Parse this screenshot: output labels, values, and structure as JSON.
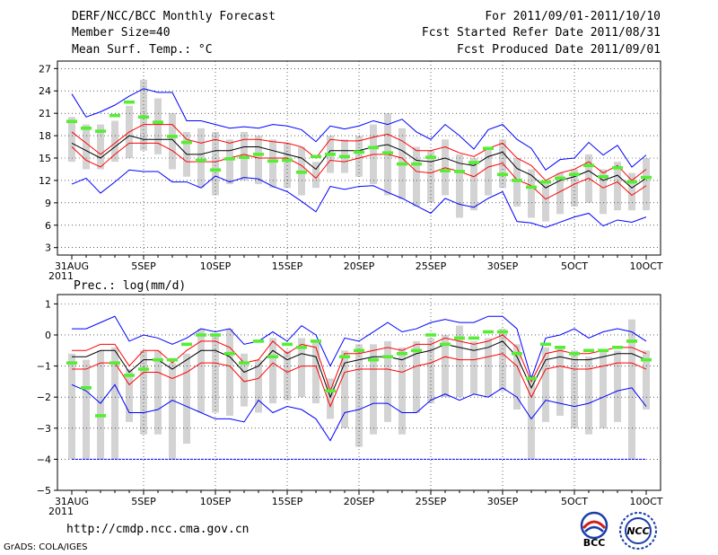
{
  "header": {
    "title": "DERF/NCC/BCC Monthly Forecast",
    "member_size": "Member Size=40",
    "variable": "Mean Surf. Temp.: °C",
    "period": "For 2011/09/01-2011/10/10",
    "started": "Fcst Started Refer Date 2011/08/31",
    "produced": "Fcst Produced Date 2011/09/01"
  },
  "footer": {
    "url": "http://cmdp.ncc.cma.gov.cn",
    "grads": "GrADS: COLA/IGES",
    "logo_left": "BCC",
    "logo_right": "NCC"
  },
  "colors": {
    "box": "#d3d3d3",
    "median": "#000000",
    "ens_envelope": "#ff0000",
    "extreme": "#0000ff",
    "observed": "#55ee33"
  },
  "chart_data": [
    {
      "type": "line",
      "title": "Mean Surf. Temp.: °C",
      "xlabel": "",
      "ylabel": "°C",
      "ylim": [
        2,
        28
      ],
      "yticks": [
        "3",
        "6",
        "9",
        "12",
        "15",
        "18",
        "21",
        "24",
        "27"
      ],
      "ytick_values": [
        3,
        6,
        9,
        12,
        15,
        18,
        21,
        24,
        27
      ],
      "xtick_labels": [
        "31AUG",
        "5SEP",
        "10SEP",
        "15SEP",
        "20SEP",
        "25SEP",
        "30SEP",
        "5OCT",
        "10OCT"
      ],
      "x_year_label": "2011",
      "x_days": 41,
      "series": [
        {
          "name": "max",
          "values": [
            23.6,
            20.5,
            21.2,
            22.1,
            23.3,
            24.3,
            23.8,
            23.8,
            20.0,
            20.0,
            19.5,
            19.0,
            19.2,
            19.0,
            19.5,
            19.3,
            18.8,
            17.2,
            19.3,
            18.9,
            19.3,
            20.0,
            19.5,
            20.2,
            18.5,
            17.5,
            19.5,
            18.0,
            16.2,
            18.8,
            19.5,
            17.5,
            16.3,
            13.4,
            14.8,
            15.0,
            17.1,
            15.4,
            16.7,
            13.8,
            15.4
          ]
        },
        {
          "name": "upper",
          "values": [
            18.5,
            17.0,
            15.5,
            17.0,
            18.5,
            19.5,
            19.5,
            19.5,
            17.5,
            17.0,
            17.5,
            17.0,
            17.5,
            17.5,
            17.2,
            17.0,
            16.5,
            15.0,
            17.5,
            17.3,
            17.3,
            17.8,
            18.2,
            17.3,
            16.0,
            16.0,
            16.5,
            15.7,
            15.2,
            16.3,
            17.0,
            15.0,
            14.0,
            12.0,
            13.0,
            13.5,
            14.5,
            13.0,
            14.0,
            12.0,
            13.5
          ]
        },
        {
          "name": "median",
          "values": [
            17.0,
            16.0,
            15.0,
            16.5,
            18.0,
            17.5,
            17.5,
            17.5,
            15.5,
            15.5,
            16.0,
            16.0,
            16.5,
            16.5,
            16.0,
            15.5,
            15.0,
            13.5,
            16.0,
            16.0,
            16.0,
            16.5,
            16.8,
            16.0,
            14.7,
            14.5,
            15.0,
            14.3,
            14.0,
            15.2,
            15.8,
            13.6,
            12.7,
            11.0,
            12.0,
            12.5,
            13.3,
            12.0,
            12.7,
            11.0,
            12.3
          ]
        },
        {
          "name": "lower",
          "values": [
            16.5,
            14.7,
            13.8,
            15.5,
            17.0,
            17.0,
            17.0,
            16.0,
            14.5,
            14.5,
            14.5,
            15.0,
            15.5,
            15.0,
            15.0,
            15.0,
            14.0,
            12.3,
            14.7,
            14.5,
            15.0,
            15.5,
            15.5,
            15.0,
            13.2,
            13.0,
            13.7,
            13.2,
            12.5,
            13.8,
            14.3,
            12.1,
            11.3,
            9.5,
            10.5,
            11.5,
            12.3,
            11.0,
            11.8,
            10.0,
            11.3
          ]
        },
        {
          "name": "min",
          "values": [
            11.5,
            12.3,
            10.3,
            11.8,
            13.4,
            13.2,
            13.2,
            11.8,
            11.8,
            11.0,
            12.6,
            11.8,
            12.4,
            12.2,
            11.2,
            10.5,
            9.2,
            7.8,
            11.2,
            10.8,
            11.2,
            11.3,
            10.4,
            9.6,
            8.6,
            7.6,
            9.6,
            8.8,
            8.4,
            9.6,
            10.5,
            6.5,
            6.3,
            5.7,
            6.4,
            7.1,
            7.6,
            5.9,
            6.7,
            6.4,
            7.1
          ]
        },
        {
          "name": "box_top",
          "values": [
            20.5,
            19.5,
            19.5,
            20.0,
            22.0,
            25.5,
            23.0,
            21.0,
            18.5,
            19.0,
            18.5,
            17.5,
            18.5,
            18.0,
            17.5,
            17.0,
            16.5,
            14.5,
            18.0,
            17.5,
            18.0,
            19.5,
            21.0,
            19.0,
            16.5,
            16.0,
            17.5,
            15.5,
            15.0,
            16.5,
            17.5,
            15.0,
            13.5,
            12.0,
            13.0,
            13.5,
            15.5,
            13.5,
            14.5,
            13.0,
            15.0
          ]
        },
        {
          "name": "box_bottom",
          "values": [
            14.5,
            13.5,
            13.5,
            14.5,
            15.0,
            16.0,
            15.5,
            13.5,
            12.5,
            11.0,
            10.0,
            11.5,
            12.0,
            11.5,
            11.0,
            11.0,
            10.0,
            11.0,
            13.0,
            13.0,
            12.5,
            11.5,
            10.0,
            9.5,
            8.5,
            9.0,
            10.0,
            7.0,
            8.0,
            10.0,
            11.0,
            8.5,
            7.0,
            6.5,
            7.5,
            8.5,
            9.0,
            7.5,
            8.0,
            8.0,
            8.0
          ]
        },
        {
          "name": "observed",
          "values": [
            19.9,
            19.0,
            18.6,
            20.7,
            22.5,
            20.5,
            19.8,
            17.9,
            17.1,
            14.7,
            13.4,
            14.9,
            15.1,
            15.5,
            14.6,
            14.7,
            13.1,
            15.2,
            15.5,
            15.2,
            15.8,
            16.4,
            15.7,
            14.2,
            14.2,
            15.1,
            13.3,
            13.2,
            14.4,
            16.3,
            12.8,
            12.0,
            11.1,
            11.8,
            12.3,
            12.8,
            14.0,
            12.5,
            13.7,
            11.8,
            12.4
          ]
        }
      ]
    },
    {
      "type": "line",
      "title": "Prec.: log(mm/d)",
      "xlabel": "",
      "ylabel": "log(mm/d)",
      "ylim": [
        -5,
        1.3
      ],
      "yticks": [
        "−5",
        "−4",
        "−3",
        "−2",
        "−1",
        "0",
        "1"
      ],
      "ytick_values": [
        -5,
        -4,
        -3,
        -2,
        -1,
        0,
        1
      ],
      "xtick_labels": [
        "31AUG",
        "5SEP",
        "10SEP",
        "15SEP",
        "20SEP",
        "25SEP",
        "30SEP",
        "5OCT",
        "10OCT"
      ],
      "x_year_label": "2011",
      "x_days": 41,
      "series": [
        {
          "name": "max",
          "values": [
            0.2,
            0.2,
            0.4,
            0.6,
            -0.2,
            0.0,
            -0.1,
            -0.3,
            -0.1,
            0.2,
            0.1,
            0.2,
            -0.3,
            -0.2,
            0.1,
            -0.2,
            0.3,
            0.0,
            -1.0,
            -0.1,
            -0.2,
            0.1,
            0.4,
            0.1,
            0.2,
            0.4,
            0.5,
            0.4,
            0.4,
            0.6,
            0.6,
            0.2,
            -1.4,
            -0.1,
            0.0,
            0.2,
            -0.1,
            0.1,
            0.2,
            0.1,
            -0.2
          ]
        },
        {
          "name": "upper",
          "values": [
            -0.5,
            -0.5,
            -0.3,
            -0.3,
            -1.0,
            -0.5,
            -0.5,
            -0.9,
            -0.5,
            -0.2,
            -0.2,
            -0.4,
            -0.9,
            -0.8,
            -0.2,
            -0.6,
            -0.3,
            -0.4,
            -1.8,
            -0.6,
            -0.6,
            -0.5,
            -0.4,
            -0.5,
            -0.3,
            -0.3,
            -0.1,
            -0.2,
            -0.3,
            -0.2,
            0.0,
            -0.4,
            -1.5,
            -0.6,
            -0.5,
            -0.6,
            -0.6,
            -0.5,
            -0.4,
            -0.4,
            -0.6
          ]
        },
        {
          "name": "median",
          "values": [
            -0.7,
            -0.7,
            -0.5,
            -0.5,
            -1.2,
            -0.8,
            -0.8,
            -1.1,
            -0.8,
            -0.5,
            -0.5,
            -0.7,
            -1.2,
            -1.0,
            -0.5,
            -0.8,
            -0.6,
            -0.7,
            -2.0,
            -0.9,
            -0.8,
            -0.7,
            -0.7,
            -0.8,
            -0.6,
            -0.5,
            -0.3,
            -0.4,
            -0.5,
            -0.4,
            -0.2,
            -0.7,
            -1.7,
            -0.8,
            -0.7,
            -0.8,
            -0.8,
            -0.7,
            -0.6,
            -0.6,
            -0.8
          ]
        },
        {
          "name": "lower",
          "values": [
            -1.1,
            -1.1,
            -0.9,
            -0.9,
            -1.6,
            -1.2,
            -1.2,
            -1.4,
            -1.2,
            -0.9,
            -0.9,
            -1.0,
            -1.5,
            -1.4,
            -0.9,
            -1.2,
            -1.0,
            -1.0,
            -2.3,
            -1.2,
            -1.1,
            -1.1,
            -1.1,
            -1.2,
            -1.0,
            -0.9,
            -0.7,
            -0.8,
            -0.8,
            -0.7,
            -0.6,
            -1.0,
            -2.0,
            -1.1,
            -1.0,
            -1.1,
            -1.1,
            -1.0,
            -0.9,
            -0.9,
            -1.1
          ]
        },
        {
          "name": "min",
          "values": [
            -1.6,
            -1.8,
            -2.2,
            -1.6,
            -2.5,
            -2.5,
            -2.4,
            -2.1,
            -2.3,
            -2.5,
            -2.7,
            -2.7,
            -2.8,
            -2.1,
            -2.5,
            -2.3,
            -2.4,
            -2.7,
            -3.4,
            -2.5,
            -2.4,
            -2.2,
            -2.2,
            -2.5,
            -2.5,
            -2.1,
            -1.9,
            -2.1,
            -1.9,
            -2.0,
            -1.7,
            -2.0,
            -2.7,
            -2.1,
            -2.2,
            -2.3,
            -2.2,
            -2.0,
            -1.8,
            -1.7,
            -2.3
          ]
        },
        {
          "name": "floor",
          "values": [
            -4,
            -4,
            -4,
            -4,
            -4,
            -4,
            -4,
            -4,
            -4,
            -4,
            -4,
            -4,
            -4,
            -4,
            -4,
            -4,
            -4,
            -4,
            -4,
            -4,
            -4,
            -4,
            -4,
            -4,
            -4,
            -4,
            -4,
            -4,
            -4,
            -4,
            -4,
            -4,
            -4,
            -4,
            -4,
            -4,
            -4,
            -4,
            -4,
            -4,
            -4
          ]
        },
        {
          "name": "box_top",
          "values": [
            -0.6,
            -0.8,
            -0.5,
            -0.4,
            -1.1,
            -0.5,
            -0.5,
            -0.9,
            -0.6,
            0.2,
            0.0,
            0.2,
            -0.6,
            -0.8,
            -0.1,
            -0.5,
            -0.1,
            -0.2,
            -1.4,
            -0.5,
            -0.3,
            -0.3,
            -0.2,
            -0.4,
            -0.2,
            -0.1,
            0.0,
            0.3,
            -0.2,
            -0.1,
            0.2,
            -0.3,
            -1.3,
            -0.4,
            -0.4,
            -0.5,
            -0.7,
            -0.5,
            -0.5,
            0.5,
            -0.5
          ]
        },
        {
          "name": "box_bottom",
          "values": [
            -4.0,
            -4.0,
            -4.0,
            -4.0,
            -2.8,
            -3.2,
            -3.2,
            -4.0,
            -3.5,
            -2.5,
            -2.5,
            -2.6,
            -2.3,
            -2.5,
            -2.2,
            -2.1,
            -2.0,
            -2.2,
            -2.7,
            -3.0,
            -3.6,
            -3.2,
            -2.8,
            -3.2,
            -2.5,
            -2.2,
            -2.0,
            -2.0,
            -1.9,
            -2.0,
            -1.8,
            -2.4,
            -4.0,
            -2.8,
            -2.6,
            -3.0,
            -3.2,
            -3.0,
            -2.8,
            -4.0,
            -2.4
          ]
        },
        {
          "name": "observed",
          "values": [
            -0.9,
            -1.7,
            -2.6,
            -0.9,
            -1.3,
            -1.1,
            -0.8,
            -0.8,
            -0.3,
            0.0,
            0.0,
            -0.6,
            -0.9,
            -0.2,
            -0.7,
            -0.3,
            -0.4,
            -0.2,
            -1.8,
            -0.7,
            -0.5,
            -0.8,
            -0.7,
            -0.6,
            -0.5,
            0.0,
            -0.3,
            -0.1,
            -0.1,
            0.1,
            0.1,
            -0.6,
            -1.4,
            -0.3,
            -0.4,
            -0.6,
            -0.5,
            -0.5,
            -0.4,
            -0.2,
            -0.8
          ]
        }
      ]
    }
  ]
}
